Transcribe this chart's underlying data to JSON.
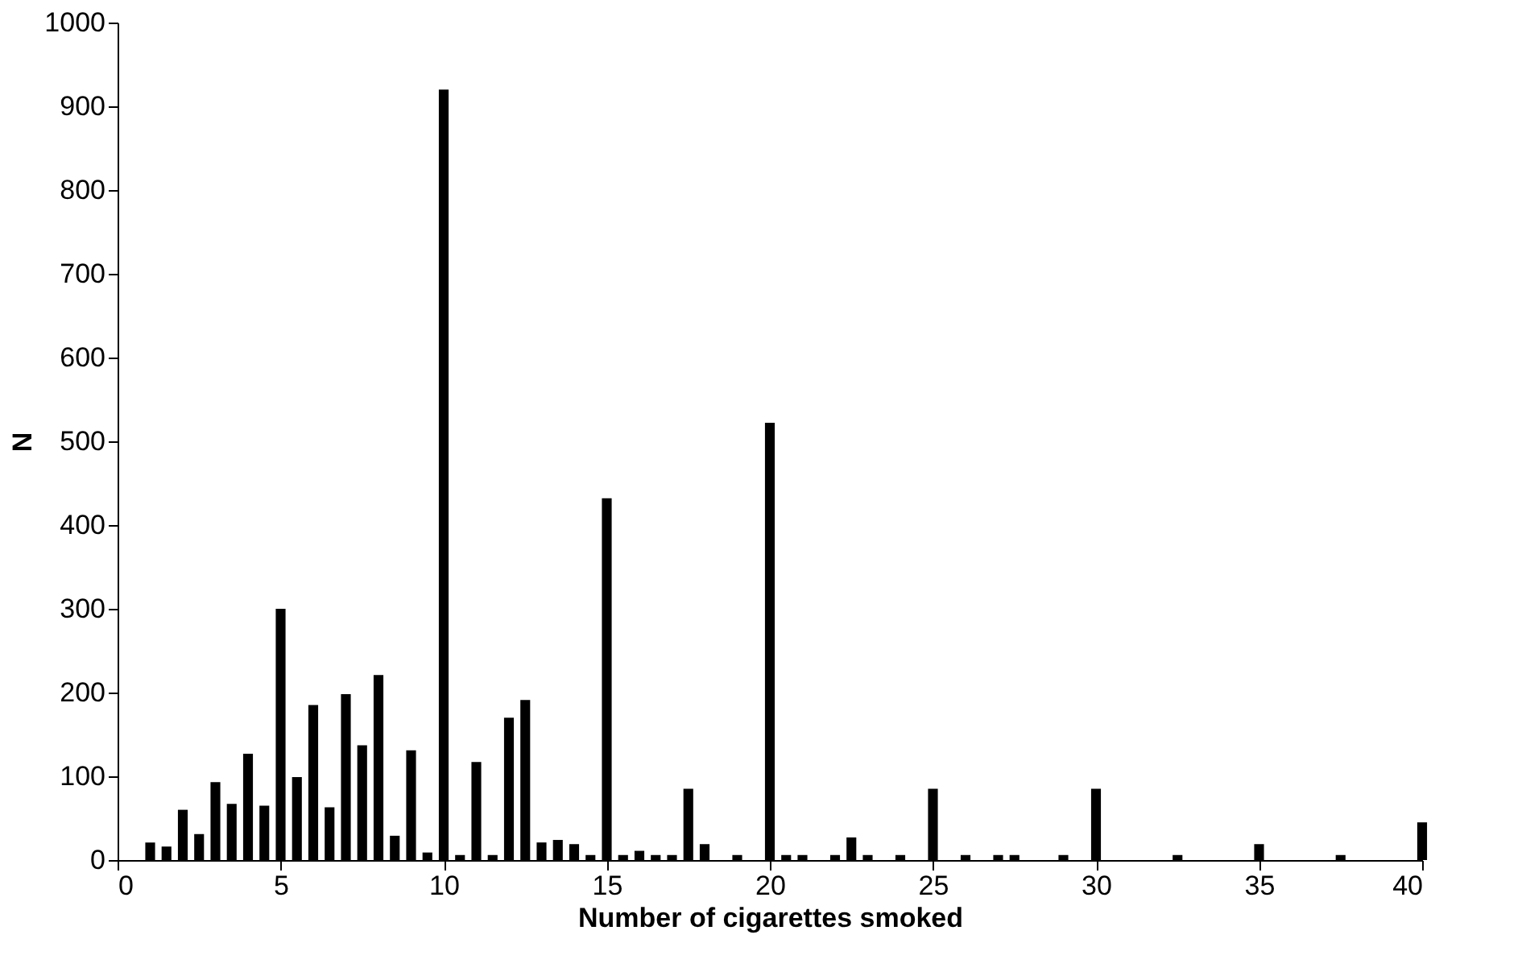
{
  "chart_data": {
    "type": "bar",
    "xlabel": "Number of cigarettes smoked",
    "ylabel": "N",
    "x": [
      1,
      1.5,
      2,
      2.5,
      3,
      3.5,
      4,
      4.5,
      5,
      5.5,
      6,
      6.5,
      7,
      7.5,
      8,
      8.5,
      9,
      9.5,
      10,
      10.5,
      11,
      11.5,
      12,
      12.5,
      13,
      13.5,
      14,
      14.5,
      15,
      15.5,
      16,
      16.5,
      17,
      17.5,
      18,
      19,
      20,
      20.5,
      21,
      22,
      22.5,
      23,
      24,
      25,
      26,
      27,
      27.5,
      29,
      30,
      32.5,
      35,
      37.5,
      40
    ],
    "values": [
      21,
      16,
      60,
      31,
      93,
      67,
      127,
      65,
      300,
      99,
      185,
      63,
      198,
      137,
      221,
      29,
      131,
      9,
      920,
      6,
      117,
      6,
      170,
      191,
      21,
      24,
      19,
      6,
      432,
      6,
      11,
      6,
      6,
      85,
      19,
      6,
      522,
      6,
      6,
      6,
      27,
      6,
      6,
      85,
      6,
      6,
      6,
      6,
      85,
      6,
      19,
      6,
      45
    ],
    "color": "#000000",
    "xlim": [
      0,
      40
    ],
    "xticks": [
      0,
      5,
      10,
      15,
      20,
      25,
      30,
      35,
      40
    ],
    "ylim": [
      0,
      1000
    ],
    "yticks": [
      0,
      100,
      200,
      300,
      400,
      500,
      600,
      700,
      800,
      900,
      1000
    ],
    "grid": false
  }
}
